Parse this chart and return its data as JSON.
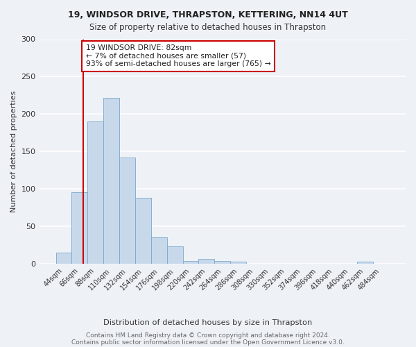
{
  "title": "19, WINDSOR DRIVE, THRAPSTON, KETTERING, NN14 4UT",
  "subtitle": "Size of property relative to detached houses in Thrapston",
  "xlabel": "Distribution of detached houses by size in Thrapston",
  "ylabel": "Number of detached properties",
  "bar_color": "#c8d8eb",
  "bar_edge_color": "#7aa8c8",
  "categories": [
    "44sqm",
    "66sqm",
    "88sqm",
    "110sqm",
    "132sqm",
    "154sqm",
    "176sqm",
    "198sqm",
    "220sqm",
    "242sqm",
    "264sqm",
    "286sqm",
    "308sqm",
    "330sqm",
    "352sqm",
    "374sqm",
    "396sqm",
    "418sqm",
    "440sqm",
    "462sqm",
    "484sqm"
  ],
  "values": [
    15,
    96,
    190,
    222,
    142,
    88,
    35,
    23,
    4,
    7,
    4,
    3,
    0,
    0,
    0,
    0,
    0,
    0,
    0,
    3,
    0
  ],
  "annotation_text": "19 WINDSOR DRIVE: 82sqm\n← 7% of detached houses are smaller (57)\n93% of semi-detached houses are larger (765) →",
  "ylim": [
    0,
    300
  ],
  "yticks": [
    0,
    50,
    100,
    150,
    200,
    250,
    300
  ],
  "footnote_line1": "Contains HM Land Registry data © Crown copyright and database right 2024.",
  "footnote_line2": "Contains public sector information licensed under the Open Government Licence v3.0.",
  "background_color": "#eef2f7",
  "grid_color": "#ffffff",
  "annotation_box_color": "#ffffff",
  "annotation_box_edge": "#cc0000",
  "red_line_color": "#cc0000",
  "red_line_x": 1.727
}
